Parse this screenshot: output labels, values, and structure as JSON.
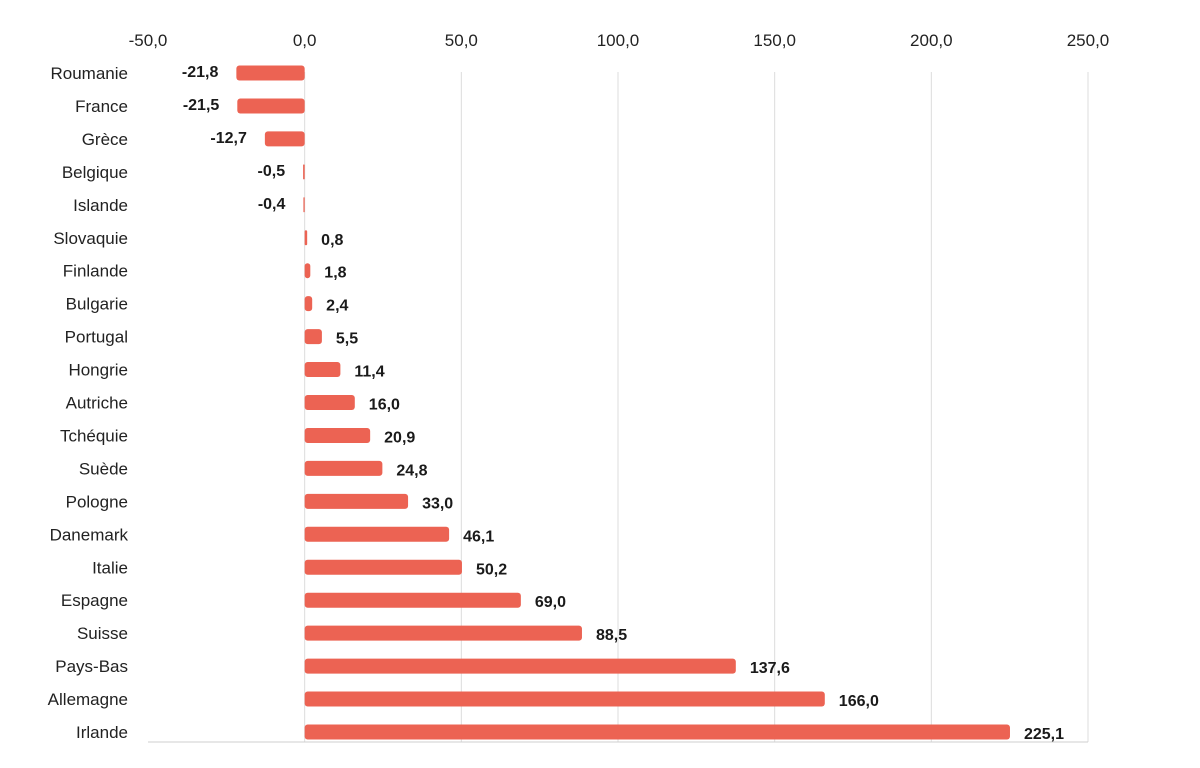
{
  "chart_data": {
    "type": "bar",
    "orientation": "horizontal",
    "categories": [
      "Roumanie",
      "France",
      "Grèce",
      "Belgique",
      "Islande",
      "Slovaquie",
      "Finlande",
      "Bulgarie",
      "Portugal",
      "Hongrie",
      "Autriche",
      "Tchéquie",
      "Suède",
      "Pologne",
      "Danemark",
      "Italie",
      "Espagne",
      "Suisse",
      "Pays-Bas",
      "Allemagne",
      "Irlande"
    ],
    "values": [
      -21.8,
      -21.5,
      -12.7,
      -0.5,
      -0.4,
      0.8,
      1.8,
      2.4,
      5.5,
      11.4,
      16.0,
      20.9,
      24.8,
      33.0,
      46.1,
      50.2,
      69.0,
      88.5,
      137.6,
      166.0,
      225.1
    ],
    "value_labels": [
      "-21,8",
      "-21,5",
      "-12,7",
      "-0,5",
      "-0,4",
      "0,8",
      "1,8",
      "2,4",
      "5,5",
      "11,4",
      "16,0",
      "20,9",
      "24,8",
      "33,0",
      "46,1",
      "50,2",
      "69,0",
      "88,5",
      "137,6",
      "166,0",
      "225,1"
    ],
    "xlim": [
      -50,
      250
    ],
    "x_ticks": [
      -50,
      0,
      50,
      100,
      150,
      200,
      250
    ],
    "x_tick_labels": [
      "-50,0",
      "0,0",
      "50,0",
      "100,0",
      "150,0",
      "200,0",
      "250,0"
    ],
    "x_axis_position": "top",
    "grid": true,
    "legend": "none",
    "bar_color": "#ec6353",
    "gridline_color": "#dcdcdc",
    "title": "",
    "xlabel": "",
    "ylabel": ""
  }
}
